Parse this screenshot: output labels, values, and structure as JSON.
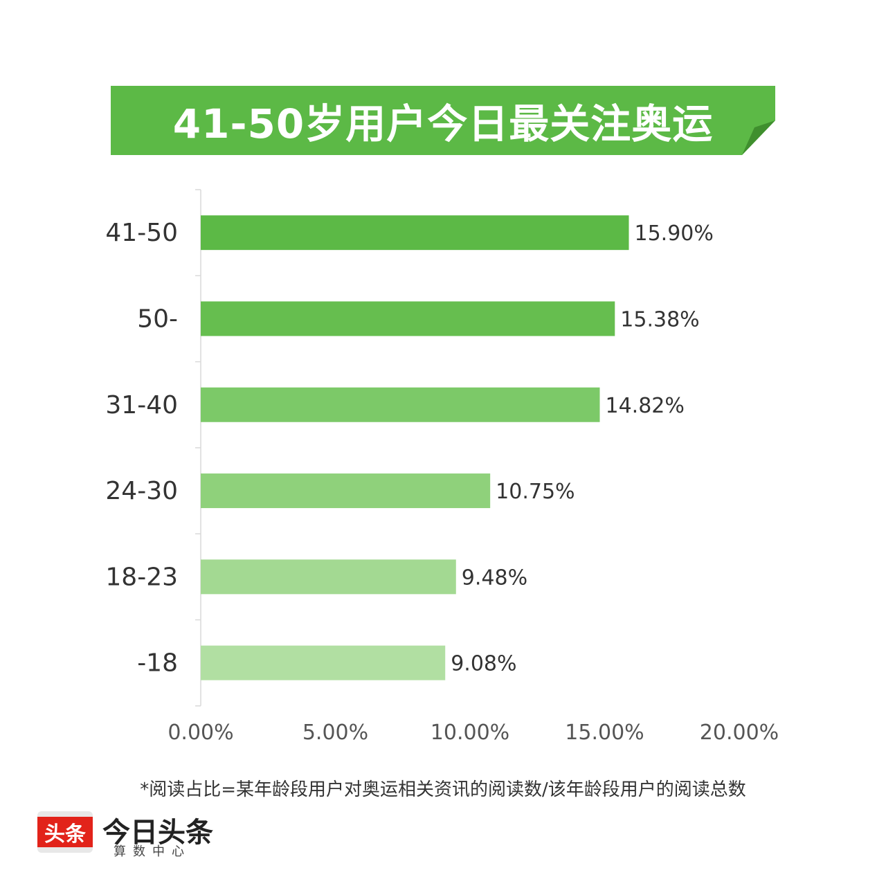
{
  "banner": {
    "title": "41-50岁用户今日最关注奥运"
  },
  "chart_data": {
    "type": "bar",
    "orientation": "horizontal",
    "categories": [
      "41-50",
      "50-",
      "31-40",
      "24-30",
      "18-23",
      "-18"
    ],
    "values": [
      15.9,
      15.38,
      14.82,
      10.75,
      9.48,
      9.08
    ],
    "value_labels": [
      "15.90%",
      "15.38%",
      "14.82%",
      "10.75%",
      "9.48%",
      "9.08%"
    ],
    "xlim": [
      0,
      20
    ],
    "xticks": [
      0,
      5,
      10,
      15,
      20
    ],
    "xtick_labels": [
      "0.00%",
      "5.00%",
      "10.00%",
      "15.00%",
      "20.00%"
    ],
    "bar_colors": [
      "#5cb946",
      "#66be4f",
      "#7cc968",
      "#8fd17b",
      "#a3d992",
      "#b1dfa2"
    ],
    "banner_color": "#5cb946",
    "grid": false
  },
  "footnote": "*阅读占比=某年龄段用户对奥运相关资讯的阅读数/该年龄段用户的阅读总数",
  "brand": {
    "badge": "头条",
    "name": "今日头条",
    "sub": "算数中心"
  }
}
